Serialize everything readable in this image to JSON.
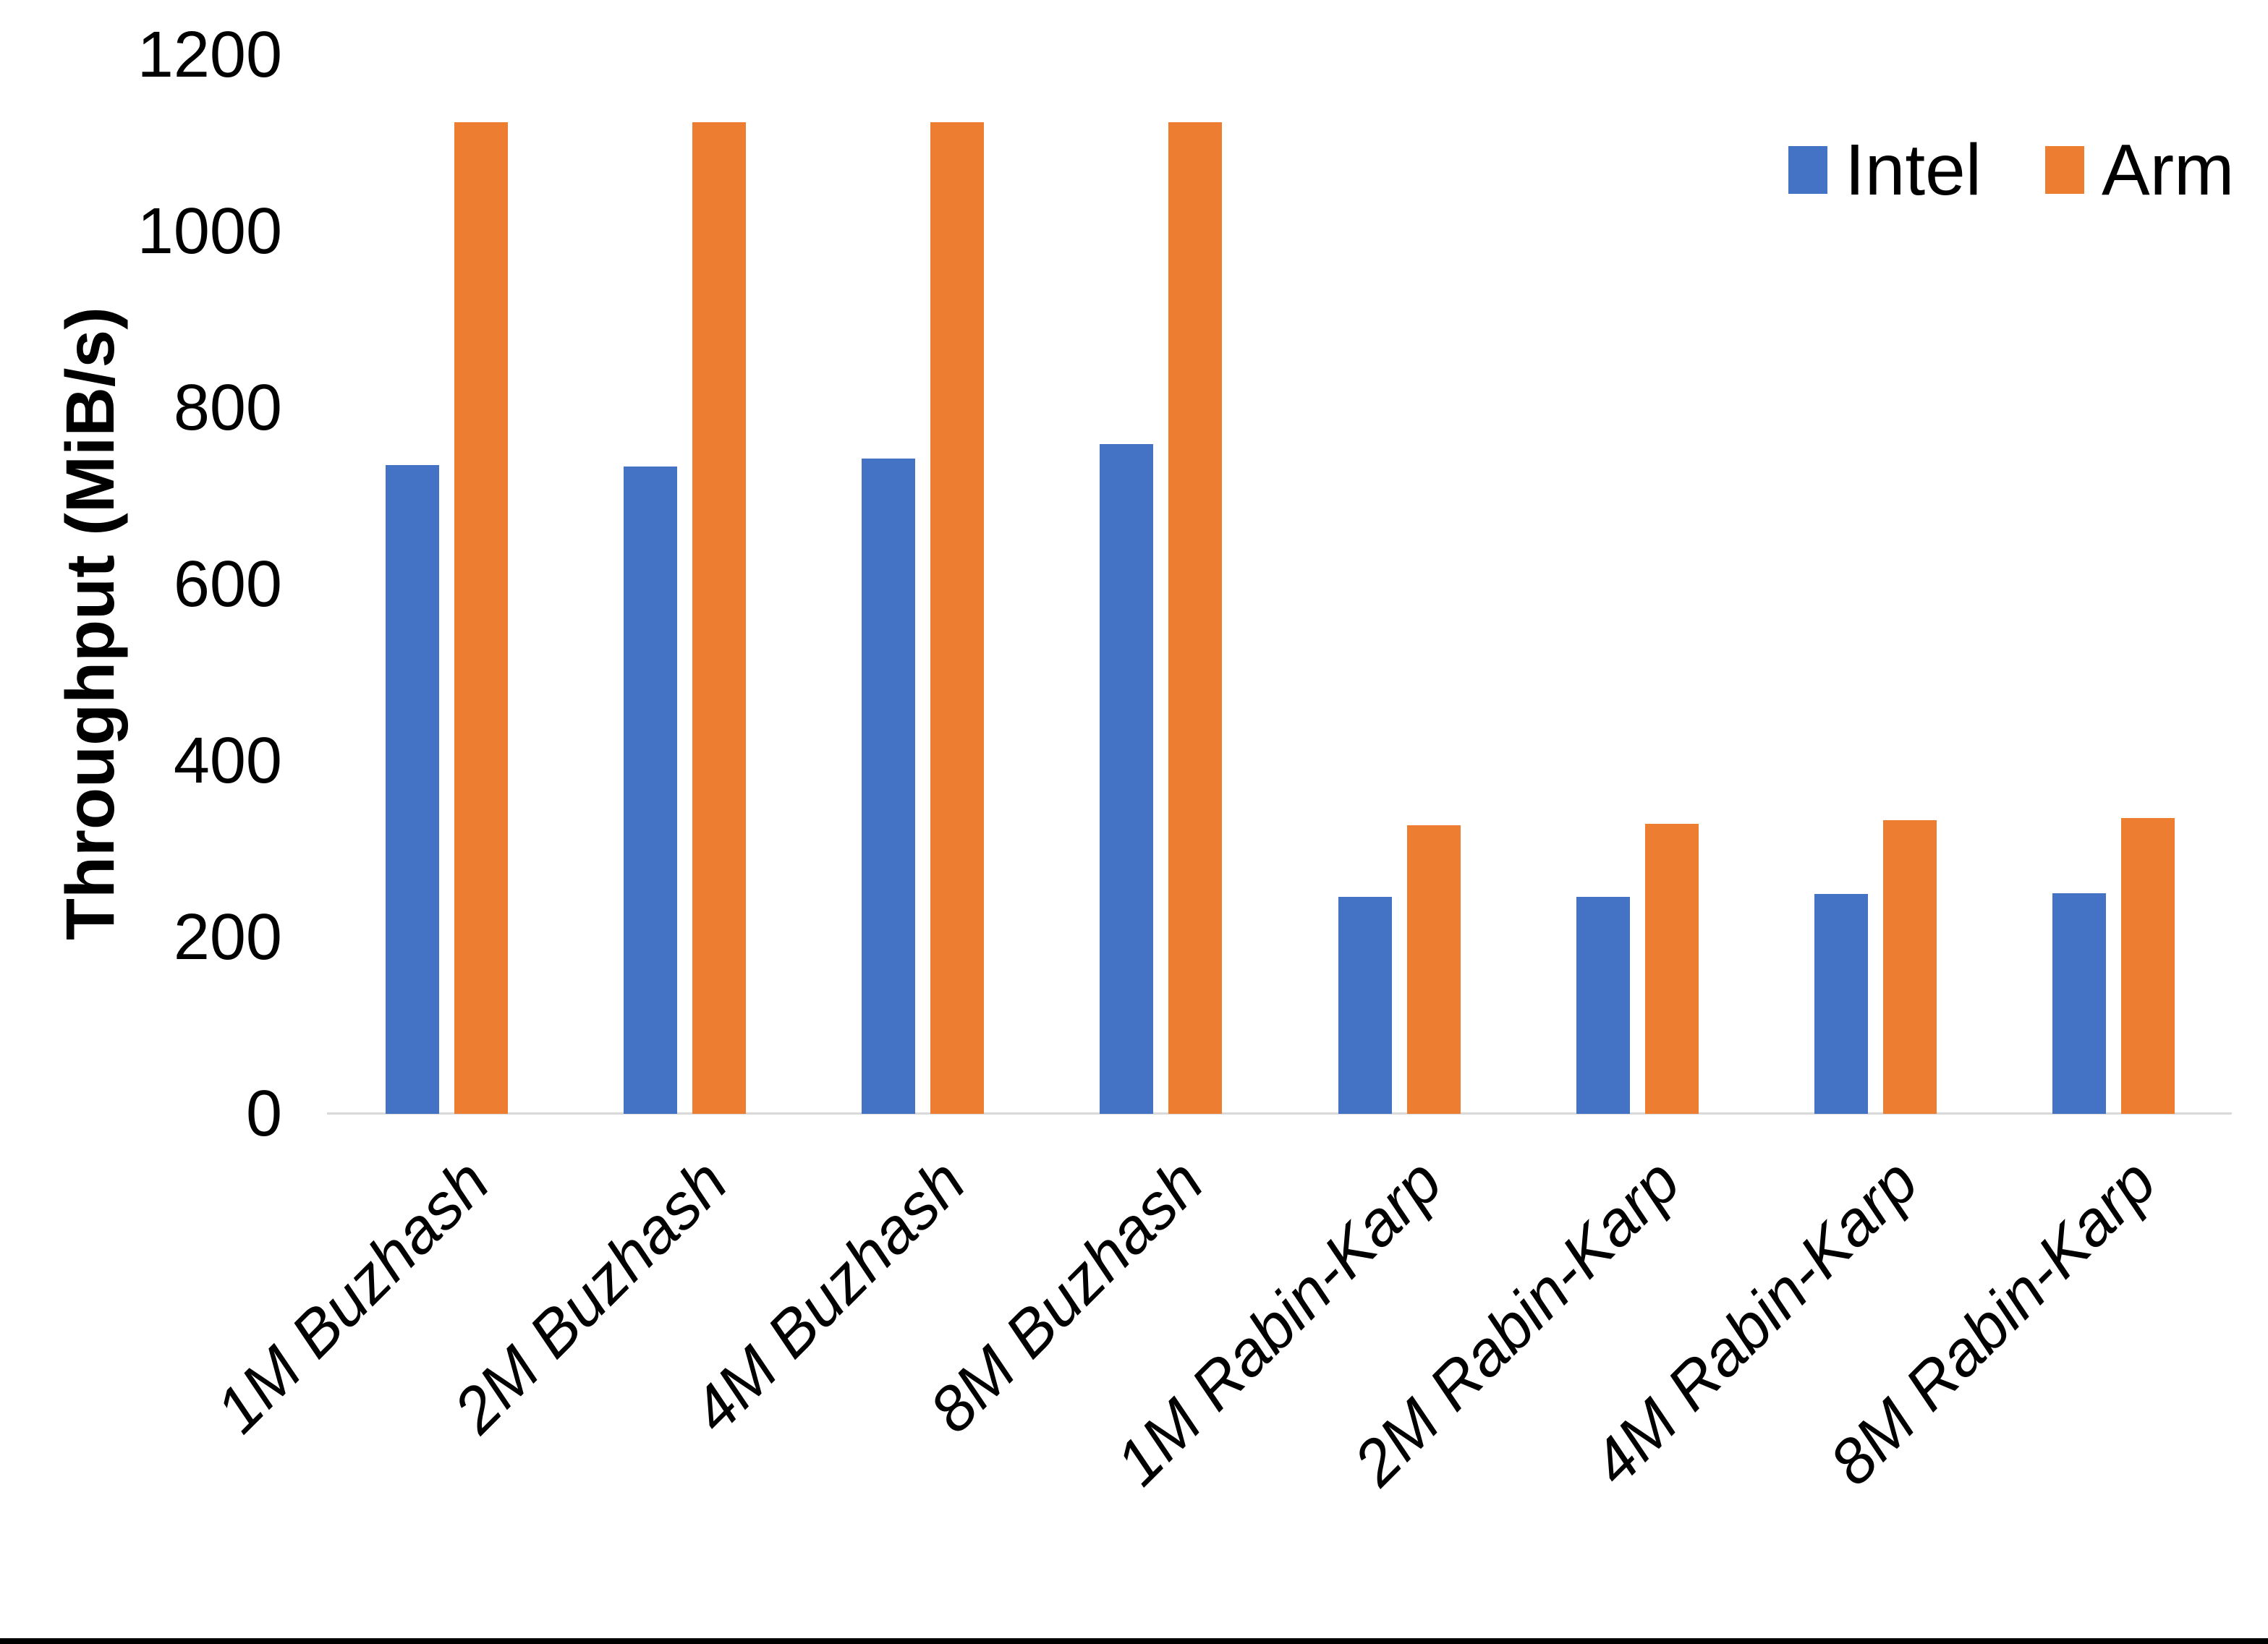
{
  "chart_data": {
    "type": "bar",
    "title": "",
    "xlabel": "",
    "ylabel": "Throughput (MiB/s)",
    "ylim": [
      0,
      1200
    ],
    "ytick_step": 200,
    "yticks": [
      "0",
      "200",
      "400",
      "600",
      "800",
      "1000",
      "1200"
    ],
    "grid": false,
    "legend_position": "top-right",
    "categories": [
      "1M Buzhash",
      "2M Buzhash",
      "4M Buzhash",
      "8M Buzhash",
      "1M Rabin-Karp",
      "2M Rabin-Karp",
      "4M Rabin-Karp",
      "8M Rabin-Karp"
    ],
    "series": [
      {
        "name": "Intel",
        "color": "#4472C4",
        "values": [
          735,
          734,
          743,
          759,
          246,
          246,
          249,
          250
        ]
      },
      {
        "name": "Arm",
        "color": "#ED7D31",
        "values": [
          1124,
          1124,
          1124,
          1124,
          327,
          329,
          333,
          335
        ]
      }
    ]
  }
}
